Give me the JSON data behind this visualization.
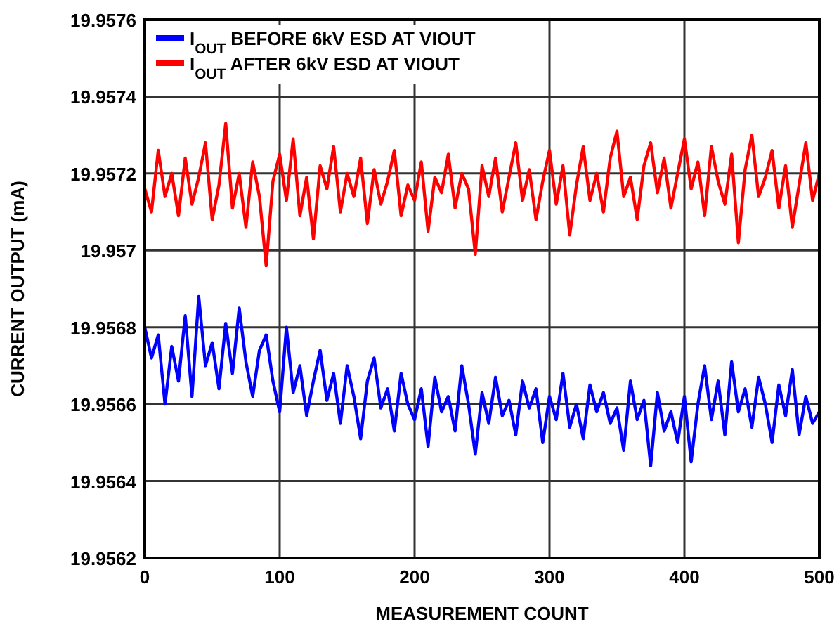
{
  "chart_data": {
    "type": "line",
    "xlabel": "MEASUREMENT COUNT",
    "ylabel": "CURRENT OUTPUT (mA)",
    "x": [
      0,
      5,
      10,
      15,
      20,
      25,
      30,
      35,
      40,
      45,
      50,
      55,
      60,
      65,
      70,
      75,
      80,
      85,
      90,
      95,
      100,
      105,
      110,
      115,
      120,
      125,
      130,
      135,
      140,
      145,
      150,
      155,
      160,
      165,
      170,
      175,
      180,
      185,
      190,
      195,
      200,
      205,
      210,
      215,
      220,
      225,
      230,
      235,
      240,
      245,
      250,
      255,
      260,
      265,
      270,
      275,
      280,
      285,
      290,
      295,
      300,
      305,
      310,
      315,
      320,
      325,
      330,
      335,
      340,
      345,
      350,
      355,
      360,
      365,
      370,
      375,
      380,
      385,
      390,
      395,
      400,
      405,
      410,
      415,
      420,
      425,
      430,
      435,
      440,
      445,
      450,
      455,
      460,
      465,
      470,
      475,
      480,
      485,
      490,
      495,
      500
    ],
    "series": [
      {
        "name": "I$_{OUT}$ BEFORE 6kV ESD AT VIOUT",
        "color": "#0000ff",
        "values": [
          19.9568,
          19.95672,
          19.95678,
          19.9566,
          19.95675,
          19.95666,
          19.95683,
          19.95662,
          19.95688,
          19.9567,
          19.95676,
          19.95664,
          19.95681,
          19.95668,
          19.95685,
          19.95671,
          19.95662,
          19.95674,
          19.95678,
          19.95666,
          19.95658,
          19.9568,
          19.95663,
          19.9567,
          19.95657,
          19.95666,
          19.95674,
          19.95661,
          19.95668,
          19.95655,
          19.9567,
          19.95662,
          19.95651,
          19.95666,
          19.95672,
          19.95659,
          19.95664,
          19.95653,
          19.95668,
          19.9566,
          19.95656,
          19.95664,
          19.95649,
          19.95667,
          19.95658,
          19.95662,
          19.95653,
          19.9567,
          19.9566,
          19.95647,
          19.95663,
          19.95655,
          19.95667,
          19.95657,
          19.95661,
          19.95652,
          19.95666,
          19.95659,
          19.95664,
          19.9565,
          19.95662,
          19.95656,
          19.95668,
          19.95654,
          19.9566,
          19.95651,
          19.95665,
          19.95658,
          19.95663,
          19.95655,
          19.95659,
          19.95648,
          19.95666,
          19.95656,
          19.95661,
          19.95644,
          19.95663,
          19.95653,
          19.95658,
          19.9565,
          19.95662,
          19.95645,
          19.9566,
          19.9567,
          19.95656,
          19.95666,
          19.95652,
          19.95671,
          19.95658,
          19.95664,
          19.95654,
          19.95667,
          19.9566,
          19.9565,
          19.95665,
          19.95657,
          19.95669,
          19.95652,
          19.95662,
          19.95655,
          19.95658
        ]
      },
      {
        "name": "I$_{OUT}$ AFTER 6kV ESD AT VIOUT",
        "color": "#ff0000",
        "values": [
          19.95716,
          19.9571,
          19.95726,
          19.95714,
          19.9572,
          19.95709,
          19.95724,
          19.95712,
          19.95719,
          19.95728,
          19.95708,
          19.95717,
          19.95733,
          19.95711,
          19.9572,
          19.95706,
          19.95723,
          19.95714,
          19.95696,
          19.95718,
          19.95725,
          19.95713,
          19.95729,
          19.95709,
          19.95719,
          19.95703,
          19.95722,
          19.95716,
          19.95727,
          19.9571,
          19.9572,
          19.95714,
          19.95724,
          19.95707,
          19.95721,
          19.95712,
          19.95718,
          19.95726,
          19.95709,
          19.95717,
          19.95713,
          19.95723,
          19.95705,
          19.95719,
          19.95715,
          19.95725,
          19.95711,
          19.9572,
          19.95716,
          19.95699,
          19.95722,
          19.95714,
          19.95724,
          19.9571,
          19.95719,
          19.95728,
          19.95713,
          19.95721,
          19.95708,
          19.95718,
          19.95726,
          19.95712,
          19.95722,
          19.95704,
          19.95717,
          19.95727,
          19.95713,
          19.9572,
          19.9571,
          19.95724,
          19.95731,
          19.95714,
          19.95719,
          19.95708,
          19.95722,
          19.95728,
          19.95715,
          19.95724,
          19.95711,
          19.9572,
          19.95729,
          19.95716,
          19.95723,
          19.95709,
          19.95727,
          19.95718,
          19.95712,
          19.95725,
          19.95702,
          19.95721,
          19.9573,
          19.95714,
          19.95719,
          19.95726,
          19.95711,
          19.95722,
          19.95706,
          19.95717,
          19.95728,
          19.95713,
          19.9572
        ]
      }
    ],
    "xlim": [
      0,
      500
    ],
    "xticks": [
      0,
      100,
      200,
      300,
      400,
      500
    ],
    "ylim": [
      19.9562,
      19.9576
    ],
    "yticks": [
      19.9562,
      19.9564,
      19.9566,
      19.9568,
      19.957,
      19.9572,
      19.9574,
      19.9576
    ],
    "grid": true,
    "legend": "top left",
    "marker": "none",
    "line_style": "solid"
  }
}
